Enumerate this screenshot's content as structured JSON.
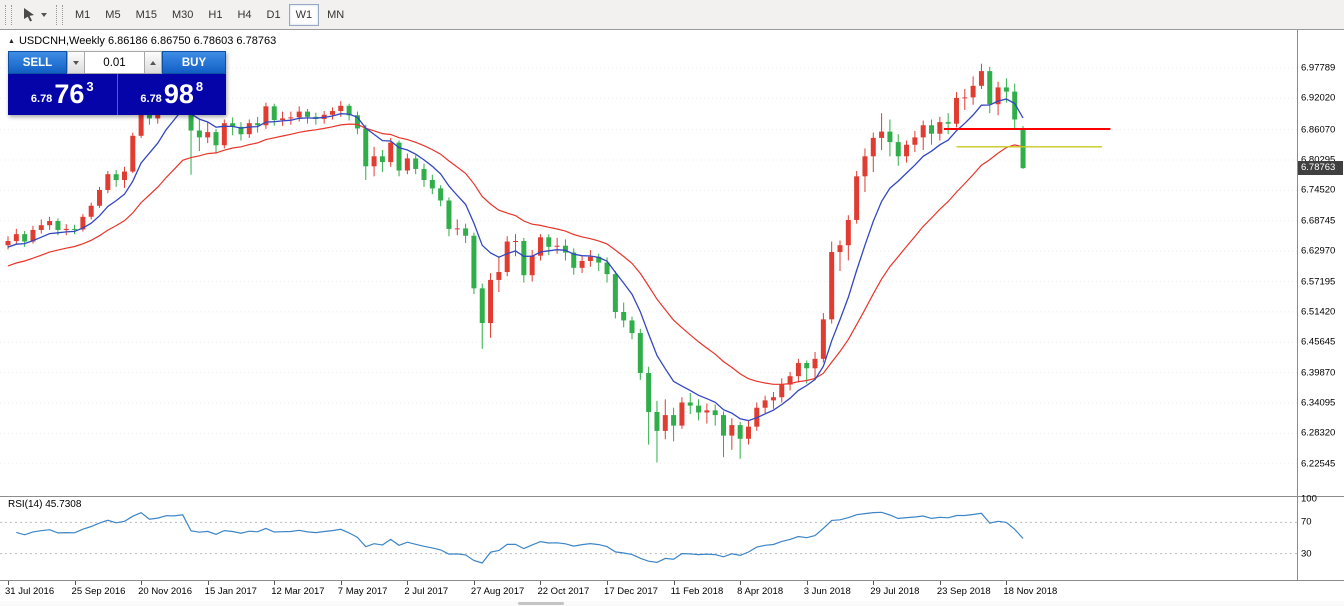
{
  "toolbar": {
    "timeframes": [
      "M1",
      "M5",
      "M15",
      "M30",
      "H1",
      "H4",
      "D1",
      "W1",
      "MN"
    ],
    "active_timeframe": "W1",
    "pointer_tool_icon": "cursor-arrow-icon"
  },
  "header": {
    "symbol_line": "USDCNH,Weekly 6.86186 6.86750 6.78603 6.78763"
  },
  "trade_panel": {
    "sell_label": "SELL",
    "buy_label": "BUY",
    "volume": "0.01",
    "sell_price_prefix": "6.78",
    "sell_price_pips": "76",
    "sell_price_point": "3",
    "buy_price_prefix": "6.78",
    "buy_price_pips": "98",
    "buy_price_point": "8"
  },
  "chart_data": {
    "type": "candlestick",
    "title": "USDCNH Weekly",
    "symbol": "USDCNH",
    "timeframe": "Weekly",
    "ohlc": {
      "open": "6.86186",
      "high": "6.86750",
      "low": "6.78603",
      "close": "6.78763"
    },
    "up_color": "#e03c31",
    "down_color": "#2fae49",
    "current_price": "6.78763",
    "price_axis_labels": [
      "6.97789",
      "6.92020",
      "6.86070",
      "6.80295",
      "6.74520",
      "6.68745",
      "6.62970",
      "6.57195",
      "6.51420",
      "6.45645",
      "6.39870",
      "6.34095",
      "6.28320",
      "6.22545"
    ],
    "time_axis_labels": [
      {
        "week": 0,
        "label": "31 Jul 2016"
      },
      {
        "week": 8,
        "label": "25 Sep 2016"
      },
      {
        "week": 16,
        "label": "20 Nov 2016"
      },
      {
        "week": 24,
        "label": "15 Jan 2017"
      },
      {
        "week": 32,
        "label": "12 Mar 2017"
      },
      {
        "week": 40,
        "label": "7 May 2017"
      },
      {
        "week": 48,
        "label": "2 Jul 2017"
      },
      {
        "week": 56,
        "label": "27 Aug 2017"
      },
      {
        "week": 64,
        "label": "22 Oct 2017"
      },
      {
        "week": 72,
        "label": "17 Dec 2017"
      },
      {
        "week": 80,
        "label": "11 Feb 2018"
      },
      {
        "week": 88,
        "label": "8 Apr 2018"
      },
      {
        "week": 96,
        "label": "3 Jun 2018"
      },
      {
        "week": 104,
        "label": "29 Jul 2018"
      },
      {
        "week": 112,
        "label": "23 Sep 2018"
      },
      {
        "week": 120,
        "label": "18 Nov 2018"
      }
    ],
    "overlays": {
      "ma_fast": {
        "period": 8,
        "color": "#3347c0",
        "seed": 6.634
      },
      "ma_slow": {
        "period": 21,
        "color": "#e8352a",
        "seed": 6.597
      },
      "hlines": [
        {
          "price": 6.862,
          "color": "#ff0000",
          "from_week": 112.5,
          "to_week": 132.5,
          "width": 2
        },
        {
          "price": 6.828,
          "color": "#c8c81e",
          "from_week": 114,
          "to_week": 131.5,
          "width": 1.4
        }
      ]
    },
    "indicator": {
      "name": "RSI",
      "period": 14,
      "value": "45.7308",
      "value_label": "RSI(14) 45.7308",
      "levels": [
        100,
        70,
        30
      ],
      "color": "#3d85c6"
    },
    "candles": [
      [
        6.641,
        6.658,
        6.633,
        6.649
      ],
      [
        6.649,
        6.672,
        6.643,
        6.662
      ],
      [
        6.662,
        6.668,
        6.638,
        6.648
      ],
      [
        6.648,
        6.678,
        6.644,
        6.67
      ],
      [
        6.67,
        6.69,
        6.663,
        6.679
      ],
      [
        6.679,
        6.695,
        6.67,
        6.687
      ],
      [
        6.687,
        6.692,
        6.66,
        6.67
      ],
      [
        6.67,
        6.681,
        6.66,
        6.672
      ],
      [
        6.672,
        6.68,
        6.662,
        6.671
      ],
      [
        6.671,
        6.7,
        6.667,
        6.695
      ],
      [
        6.695,
        6.722,
        6.69,
        6.716
      ],
      [
        6.716,
        6.752,
        6.712,
        6.746
      ],
      [
        6.746,
        6.782,
        6.74,
        6.776
      ],
      [
        6.776,
        6.784,
        6.752,
        6.765
      ],
      [
        6.765,
        6.79,
        6.75,
        6.781
      ],
      [
        6.781,
        6.855,
        6.778,
        6.849
      ],
      [
        6.849,
        6.925,
        6.845,
        6.918
      ],
      [
        6.918,
        6.922,
        6.87,
        6.882
      ],
      [
        6.882,
        6.91,
        6.872,
        6.902
      ],
      [
        6.902,
        6.955,
        6.898,
        6.949
      ],
      [
        6.949,
        6.96,
        6.926,
        6.948
      ],
      [
        6.948,
        6.978,
        6.94,
        6.969
      ],
      [
        6.969,
        6.985,
        6.775,
        6.859
      ],
      [
        6.859,
        6.88,
        6.82,
        6.846
      ],
      [
        6.846,
        6.875,
        6.835,
        6.856
      ],
      [
        6.856,
        6.862,
        6.815,
        6.831
      ],
      [
        6.831,
        6.88,
        6.825,
        6.873
      ],
      [
        6.873,
        6.884,
        6.85,
        6.866
      ],
      [
        6.866,
        6.875,
        6.84,
        6.852
      ],
      [
        6.852,
        6.88,
        6.845,
        6.873
      ],
      [
        6.873,
        6.885,
        6.855,
        6.869
      ],
      [
        6.869,
        6.912,
        6.862,
        6.905
      ],
      [
        6.905,
        6.91,
        6.868,
        6.879
      ],
      [
        6.879,
        6.895,
        6.868,
        6.882
      ],
      [
        6.882,
        6.895,
        6.87,
        6.884
      ],
      [
        6.884,
        6.905,
        6.876,
        6.895
      ],
      [
        6.895,
        6.9,
        6.872,
        6.885
      ],
      [
        6.885,
        6.893,
        6.87,
        6.881
      ],
      [
        6.881,
        6.896,
        6.872,
        6.889
      ],
      [
        6.889,
        6.903,
        6.88,
        6.896
      ],
      [
        6.896,
        6.915,
        6.885,
        6.906
      ],
      [
        6.906,
        6.91,
        6.878,
        6.888
      ],
      [
        6.888,
        6.895,
        6.852,
        6.863
      ],
      [
        6.863,
        6.87,
        6.765,
        6.791
      ],
      [
        6.791,
        6.828,
        6.772,
        6.81
      ],
      [
        6.81,
        6.822,
        6.78,
        6.799
      ],
      [
        6.799,
        6.845,
        6.79,
        6.836
      ],
      [
        6.836,
        6.84,
        6.772,
        6.783
      ],
      [
        6.783,
        6.815,
        6.776,
        6.806
      ],
      [
        6.806,
        6.812,
        6.776,
        6.786
      ],
      [
        6.786,
        6.796,
        6.752,
        6.765
      ],
      [
        6.765,
        6.775,
        6.738,
        6.749
      ],
      [
        6.749,
        6.755,
        6.715,
        6.726
      ],
      [
        6.726,
        6.732,
        6.658,
        6.672
      ],
      [
        6.672,
        6.69,
        6.66,
        6.673
      ],
      [
        6.673,
        6.682,
        6.645,
        6.659
      ],
      [
        6.659,
        6.665,
        6.548,
        6.559
      ],
      [
        6.559,
        6.568,
        6.444,
        6.493
      ],
      [
        6.493,
        6.588,
        6.465,
        6.575
      ],
      [
        6.575,
        6.62,
        6.552,
        6.59
      ],
      [
        6.59,
        6.658,
        6.582,
        6.648
      ],
      [
        6.648,
        6.662,
        6.62,
        6.649
      ],
      [
        6.649,
        6.655,
        6.57,
        6.584
      ],
      [
        6.584,
        6.632,
        6.572,
        6.621
      ],
      [
        6.621,
        6.662,
        6.612,
        6.656
      ],
      [
        6.656,
        6.662,
        6.622,
        6.638
      ],
      [
        6.638,
        6.655,
        6.625,
        6.64
      ],
      [
        6.64,
        6.652,
        6.612,
        6.627
      ],
      [
        6.627,
        6.635,
        6.585,
        6.598
      ],
      [
        6.598,
        6.622,
        6.588,
        6.611
      ],
      [
        6.611,
        6.632,
        6.6,
        6.619
      ],
      [
        6.619,
        6.625,
        6.592,
        6.608
      ],
      [
        6.608,
        6.618,
        6.57,
        6.586
      ],
      [
        6.586,
        6.592,
        6.502,
        6.514
      ],
      [
        6.514,
        6.532,
        6.485,
        6.498
      ],
      [
        6.498,
        6.505,
        6.462,
        6.474
      ],
      [
        6.474,
        6.482,
        6.385,
        6.398
      ],
      [
        6.398,
        6.41,
        6.262,
        6.324
      ],
      [
        6.324,
        6.345,
        6.228,
        6.288
      ],
      [
        6.288,
        6.348,
        6.272,
        6.318
      ],
      [
        6.318,
        6.332,
        6.268,
        6.298
      ],
      [
        6.298,
        6.352,
        6.292,
        6.342
      ],
      [
        6.342,
        6.36,
        6.32,
        6.336
      ],
      [
        6.336,
        6.348,
        6.308,
        6.323
      ],
      [
        6.323,
        6.34,
        6.302,
        6.327
      ],
      [
        6.327,
        6.338,
        6.298,
        6.318
      ],
      [
        6.318,
        6.325,
        6.238,
        6.279
      ],
      [
        6.279,
        6.312,
        6.252,
        6.299
      ],
      [
        6.299,
        6.305,
        6.235,
        6.273
      ],
      [
        6.273,
        6.308,
        6.262,
        6.296
      ],
      [
        6.296,
        6.342,
        6.288,
        6.332
      ],
      [
        6.332,
        6.355,
        6.322,
        6.346
      ],
      [
        6.346,
        6.362,
        6.33,
        6.352
      ],
      [
        6.352,
        6.388,
        6.342,
        6.376
      ],
      [
        6.376,
        6.4,
        6.365,
        6.392
      ],
      [
        6.392,
        6.425,
        6.38,
        6.417
      ],
      [
        6.417,
        6.422,
        6.378,
        6.407
      ],
      [
        6.407,
        6.438,
        6.388,
        6.425
      ],
      [
        6.425,
        6.512,
        6.418,
        6.5
      ],
      [
        6.5,
        6.648,
        6.492,
        6.628
      ],
      [
        6.628,
        6.65,
        6.592,
        6.641
      ],
      [
        6.641,
        6.698,
        6.612,
        6.689
      ],
      [
        6.689,
        6.782,
        6.682,
        6.772
      ],
      [
        6.772,
        6.825,
        6.742,
        6.81
      ],
      [
        6.81,
        6.855,
        6.78,
        6.845
      ],
      [
        6.845,
        6.892,
        6.822,
        6.857
      ],
      [
        6.857,
        6.88,
        6.81,
        6.837
      ],
      [
        6.837,
        6.852,
        6.792,
        6.81
      ],
      [
        6.81,
        6.84,
        6.798,
        6.832
      ],
      [
        6.832,
        6.858,
        6.818,
        6.846
      ],
      [
        6.846,
        6.878,
        6.822,
        6.869
      ],
      [
        6.869,
        6.88,
        6.832,
        6.853
      ],
      [
        6.853,
        6.885,
        6.84,
        6.875
      ],
      [
        6.875,
        6.892,
        6.852,
        6.872
      ],
      [
        6.872,
        6.932,
        6.865,
        6.921
      ],
      [
        6.921,
        6.938,
        6.898,
        6.922
      ],
      [
        6.922,
        6.962,
        6.908,
        6.944
      ],
      [
        6.944,
        6.986,
        6.938,
        6.972
      ],
      [
        6.972,
        6.98,
        6.892,
        6.909
      ],
      [
        6.909,
        6.952,
        6.888,
        6.941
      ],
      [
        6.941,
        6.958,
        6.912,
        6.933
      ],
      [
        6.933,
        6.948,
        6.862,
        6.88
      ],
      [
        6.86186,
        6.8675,
        6.78603,
        6.78763
      ]
    ]
  }
}
